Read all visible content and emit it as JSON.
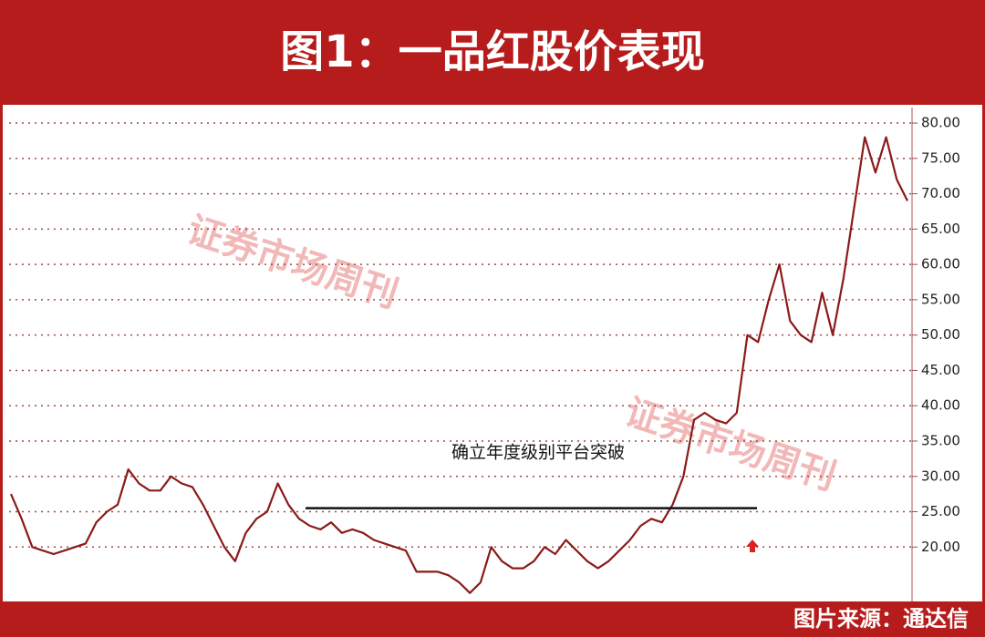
{
  "chart_data": {
    "type": "line",
    "title": "图1：一品红股价表现",
    "annotation": "确立年度级别平台突破",
    "source": "图片来源：通达信",
    "watermark": "证券市场周刊",
    "color": "#8b1a1a",
    "reference_line": {
      "value": 25.5,
      "color": "#111111"
    },
    "values": [
      27.5,
      24,
      20,
      19.5,
      19,
      19.5,
      20,
      20.5,
      23.5,
      25,
      26,
      31,
      29,
      28,
      28,
      30,
      29,
      28.5,
      26,
      23,
      20,
      18,
      22,
      24,
      25,
      29,
      26,
      24,
      23,
      22.5,
      23.5,
      22,
      22.5,
      22,
      21,
      20.5,
      20,
      19.5,
      16.5,
      16.5,
      16.5,
      16,
      15,
      13.5,
      15,
      20,
      18,
      17,
      17,
      18,
      20,
      19,
      21,
      19.5,
      18,
      17,
      18,
      19.5,
      21,
      23,
      24,
      23.5,
      26,
      30,
      38,
      39,
      38,
      37.5,
      39,
      50,
      49,
      55,
      60,
      52,
      50,
      49,
      56,
      50,
      58,
      68,
      78,
      73,
      78,
      72,
      69
    ],
    "ylim": [
      12.3,
      82.2
    ],
    "yticks": [
      {
        "value": 20,
        "label": "20.00"
      },
      {
        "value": 25,
        "label": "25.00"
      },
      {
        "value": 30,
        "label": "30.00"
      },
      {
        "value": 35,
        "label": "35.00"
      },
      {
        "value": 40,
        "label": "40.00"
      },
      {
        "value": 45,
        "label": "45.00"
      },
      {
        "value": 50,
        "label": "50.00"
      },
      {
        "value": 55,
        "label": "55.00"
      },
      {
        "value": 60,
        "label": "60.00"
      },
      {
        "value": 65,
        "label": "65.00"
      },
      {
        "value": 70,
        "label": "70.00"
      },
      {
        "value": 75,
        "label": "75.00"
      },
      {
        "value": 80,
        "label": "80.00"
      }
    ],
    "grid": true
  }
}
